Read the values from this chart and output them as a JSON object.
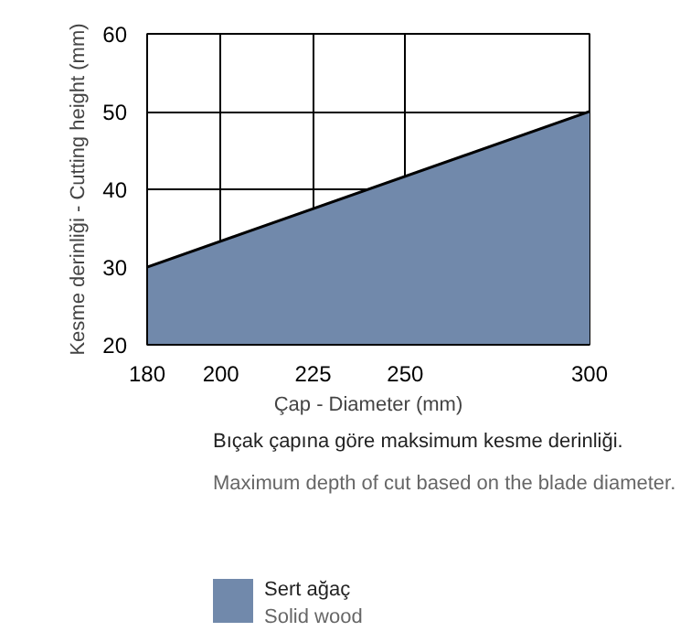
{
  "chart_data": {
    "type": "area",
    "xlabel": "Çap - Diameter (mm)",
    "ylabel": "Kesme derinliği - Cutting height (mm)",
    "x": [
      180,
      300
    ],
    "series": [
      {
        "name": "Sert ağaç\nSolid wood",
        "color": "#7189ab",
        "values": [
          30,
          50
        ]
      }
    ],
    "xlim": [
      180,
      300
    ],
    "ylim": [
      20,
      60
    ],
    "xticks": [
      180,
      200,
      225,
      250,
      300
    ],
    "yticks": [
      20,
      30,
      40,
      50,
      60
    ],
    "grid": true,
    "legend": "bottom left",
    "annotations": [
      "Bıçak çapına göre maksimum kesme derinliği.",
      "Maximum depth of cut based on the blade diameter."
    ]
  }
}
